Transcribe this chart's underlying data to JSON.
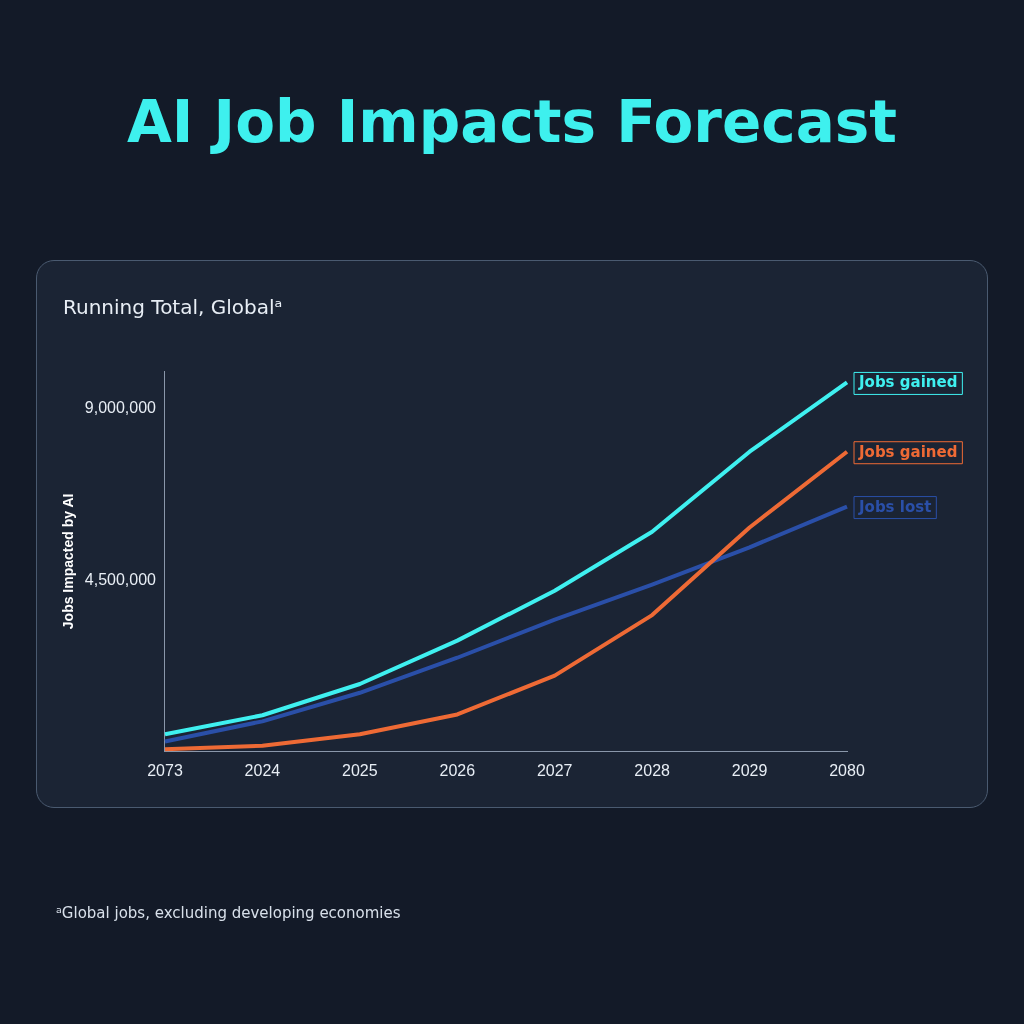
{
  "chart_data": {
    "type": "line",
    "title": "AI Job Impacts Forecast",
    "subtitle": "Running Total, Globalᵃ",
    "ylabel": "Jobs Impacted by AI",
    "annotations": [
      "ᵃGlobal jobs, excluding developing economies"
    ],
    "categories": [
      "2073",
      "2024",
      "2025",
      "2026",
      "2027",
      "2028",
      "2029",
      "2080"
    ],
    "series": [
      {
        "name": "Jobs gained",
        "color": "#3ff0f0",
        "values": [
          460000,
          960000,
          1780000,
          2920000,
          4230000,
          5780000,
          7880000,
          9700000
        ]
      },
      {
        "name": "Jobs gained",
        "color": "#ee6a35",
        "values": [
          70000,
          160000,
          460000,
          980000,
          2000000,
          3590000,
          5890000,
          7880000
        ]
      },
      {
        "name": "Jobs lost",
        "color": "#2a4fa8",
        "values": [
          270000,
          800000,
          1550000,
          2470000,
          3470000,
          4390000,
          5370000,
          6440000
        ]
      }
    ],
    "ylim": [
      0,
      10000000
    ],
    "yticks": [
      {
        "value": 0,
        "label": null
      },
      {
        "value": 4500000,
        "label": "4,500,000"
      },
      {
        "value": 9000000,
        "label": "9,000,000"
      }
    ],
    "grid": false,
    "legend": false,
    "marker": "none",
    "line_style": "solid"
  }
}
